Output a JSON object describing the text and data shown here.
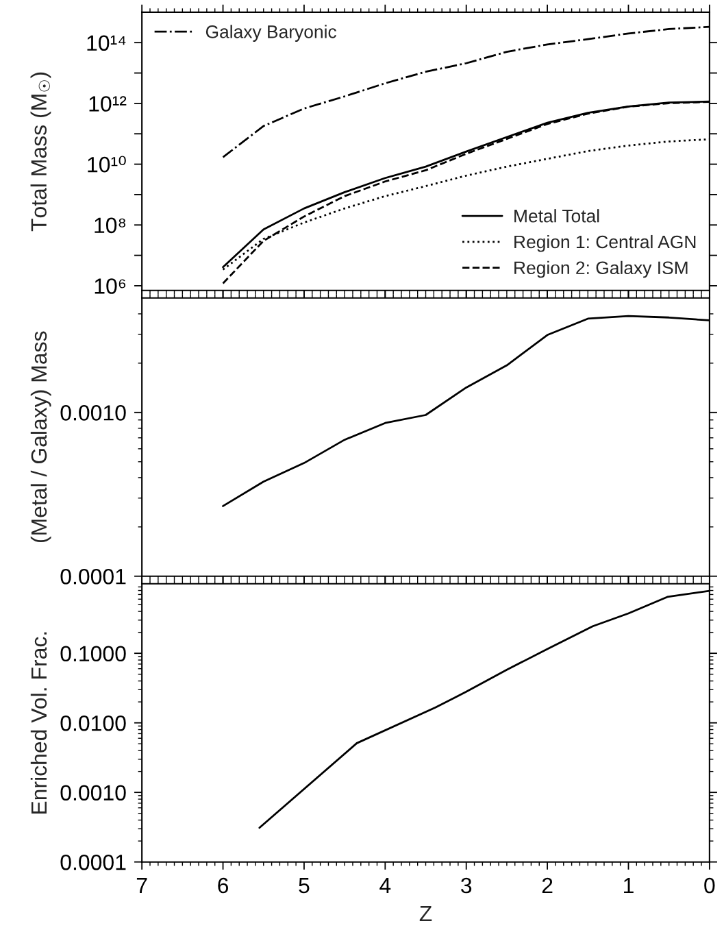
{
  "chart_data": [
    {
      "type": "line",
      "ylabel": "Total Mass (M$_{☉}$)",
      "log": "y",
      "xlim": [
        7,
        0
      ],
      "ylim": [
        700000.0,
        1000000000000000.0
      ],
      "tick_labels": "y",
      "legend": "bottom right",
      "xticks": [
        7,
        {
          "value": 6.9,
          "label": null
        },
        {
          "value": 6.8,
          "label": null
        },
        {
          "value": 6.7,
          "label": null
        },
        {
          "value": 6.6,
          "label": null
        },
        {
          "value": 6.5,
          "label": null
        },
        {
          "value": 6.4,
          "label": null
        },
        {
          "value": 6.3,
          "label": null
        },
        {
          "value": 6.2,
          "label": null
        },
        {
          "value": 6.1,
          "label": null
        },
        6,
        {
          "value": 5.9,
          "label": null
        },
        {
          "value": 5.8,
          "label": null
        },
        {
          "value": 5.7,
          "label": null
        },
        {
          "value": 5.6,
          "label": null
        },
        {
          "value": 5.5,
          "label": null
        },
        {
          "value": 5.4,
          "label": null
        },
        {
          "value": 5.3,
          "label": null
        },
        {
          "value": 5.2,
          "label": null
        },
        {
          "value": 5.1,
          "label": null
        },
        5,
        {
          "value": 4.9,
          "label": null
        },
        {
          "value": 4.8,
          "label": null
        },
        {
          "value": 4.7,
          "label": null
        },
        {
          "value": 4.6,
          "label": null
        },
        {
          "value": 4.5,
          "label": null
        },
        {
          "value": 4.4,
          "label": null
        },
        {
          "value": 4.3,
          "label": null
        },
        {
          "value": 4.2,
          "label": null
        },
        {
          "value": 4.1,
          "label": null
        },
        4,
        {
          "value": 3.9,
          "label": null
        },
        {
          "value": 3.8,
          "label": null
        },
        {
          "value": 3.7,
          "label": null
        },
        {
          "value": 3.6,
          "label": null
        },
        {
          "value": 3.5,
          "label": null
        },
        {
          "value": 3.4,
          "label": null
        },
        {
          "value": 3.3,
          "label": null
        },
        {
          "value": 3.2,
          "label": null
        },
        {
          "value": 3.1,
          "label": null
        },
        3,
        {
          "value": 2.9,
          "label": null
        },
        {
          "value": 2.8,
          "label": null
        },
        {
          "value": 2.7,
          "label": null
        },
        {
          "value": 2.6,
          "label": null
        },
        {
          "value": 2.5,
          "label": null
        },
        {
          "value": 2.4,
          "label": null
        },
        {
          "value": 2.3,
          "label": null
        },
        {
          "value": 2.2,
          "label": null
        },
        {
          "value": 2.1,
          "label": null
        },
        2,
        {
          "value": 1.9,
          "label": null
        },
        {
          "value": 1.8,
          "label": null
        },
        {
          "value": 1.7,
          "label": null
        },
        {
          "value": 1.6,
          "label": null
        },
        {
          "value": 1.5,
          "label": null
        },
        {
          "value": 1.4,
          "label": null
        },
        {
          "value": 1.3,
          "label": null
        },
        {
          "value": 1.2,
          "label": null
        },
        {
          "value": 1.1,
          "label": null
        },
        1,
        {
          "value": 0.9,
          "label": null
        },
        {
          "value": 0.8,
          "label": null
        },
        {
          "value": 0.7,
          "label": null
        },
        {
          "value": 0.6,
          "label": null
        },
        {
          "value": 0.5,
          "label": null
        },
        {
          "value": 0.4,
          "label": null
        },
        {
          "value": 0.3,
          "label": null
        },
        {
          "value": 0.2,
          "label": null
        },
        {
          "value": 0.1,
          "label": null
        },
        0
      ],
      "yticks": [
        {
          "value": 1000000.0,
          "label": "10⁶"
        },
        {
          "value": 10000000.0,
          "label": null
        },
        {
          "value": 100000000.0,
          "label": "10⁸"
        },
        {
          "value": 1000000000.0,
          "label": null
        },
        {
          "value": 10000000000.0,
          "label": "10¹⁰"
        },
        {
          "value": 100000000000.0,
          "label": null
        },
        {
          "value": 1000000000000.0,
          "label": "10¹²"
        },
        {
          "value": 10000000000000.0,
          "label": null
        },
        {
          "value": 100000000000000.0,
          "label": "10¹⁴"
        }
      ],
      "x": [
        6,
        5.5,
        5,
        4.5,
        4,
        3.5,
        3,
        2.5,
        2,
        1.5,
        1,
        0.5,
        0
      ],
      "series": [
        {
          "name": "Galaxy Baryonic",
          "color": "#000000",
          "line_style": "dashdot",
          "values": [
            17000000000.0,
            180000000000.0,
            680000000000.0,
            1700000000000.0,
            4600000000000.0,
            11000000000000.0,
            21000000000000.0,
            50000000000000.0,
            87000000000000.0,
            130000000000000.0,
            200000000000000.0,
            280000000000000.0,
            330000000000000.0
          ]
        },
        {
          "name": "Metal Total",
          "color": "#000000",
          "line_style": "solid",
          "values": [
            4100000.0,
            71000000.0,
            350000000.0,
            1200000000.0,
            3500000000.0,
            8300000000.0,
            26000000000.0,
            78000000000.0,
            230000000000.0,
            490000000000.0,
            790000000000.0,
            1070000000000.0,
            1150000000000.0
          ]
        },
        {
          "name": "Region 1: Central AGN",
          "color": "#000000",
          "line_style": "dotted",
          "values": [
            3400000.0,
            35000000.0,
            120000000.0,
            350000000.0,
            890000000.0,
            1900000000.0,
            4200000000.0,
            8300000000.0,
            15000000000.0,
            27000000000.0,
            41000000000.0,
            56000000000.0,
            66000000000.0
          ]
        },
        {
          "name": "Region 2: Galaxy ISM",
          "color": "#000000",
          "line_style": "dashed",
          "values": [
            1200000.0,
            30000000.0,
            190000000.0,
            890000000.0,
            2700000000.0,
            6300000000.0,
            22000000000.0,
            68000000000.0,
            210000000000.0,
            460000000000.0,
            780000000000.0,
            1020000000000.0,
            1120000000000.0
          ]
        }
      ]
    },
    {
      "type": "line",
      "ylabel": "(Metal / Galaxy) Mass",
      "log": "y",
      "xlim": [
        7,
        0
      ],
      "ylim": [
        0.0001,
        0.005
      ],
      "tick_labels": "y",
      "xticks": [
        7,
        {
          "value": 6.9,
          "label": null
        },
        {
          "value": 6.8,
          "label": null
        },
        {
          "value": 6.7,
          "label": null
        },
        {
          "value": 6.6,
          "label": null
        },
        {
          "value": 6.5,
          "label": null
        },
        {
          "value": 6.4,
          "label": null
        },
        {
          "value": 6.3,
          "label": null
        },
        {
          "value": 6.2,
          "label": null
        },
        {
          "value": 6.1,
          "label": null
        },
        6,
        {
          "value": 5.9,
          "label": null
        },
        {
          "value": 5.8,
          "label": null
        },
        {
          "value": 5.7,
          "label": null
        },
        {
          "value": 5.6,
          "label": null
        },
        {
          "value": 5.5,
          "label": null
        },
        {
          "value": 5.4,
          "label": null
        },
        {
          "value": 5.3,
          "label": null
        },
        {
          "value": 5.2,
          "label": null
        },
        {
          "value": 5.1,
          "label": null
        },
        5,
        {
          "value": 4.9,
          "label": null
        },
        {
          "value": 4.8,
          "label": null
        },
        {
          "value": 4.7,
          "label": null
        },
        {
          "value": 4.6,
          "label": null
        },
        {
          "value": 4.5,
          "label": null
        },
        {
          "value": 4.4,
          "label": null
        },
        {
          "value": 4.3,
          "label": null
        },
        {
          "value": 4.2,
          "label": null
        },
        {
          "value": 4.1,
          "label": null
        },
        4,
        {
          "value": 3.9,
          "label": null
        },
        {
          "value": 3.8,
          "label": null
        },
        {
          "value": 3.7,
          "label": null
        },
        {
          "value": 3.6,
          "label": null
        },
        {
          "value": 3.5,
          "label": null
        },
        {
          "value": 3.4,
          "label": null
        },
        {
          "value": 3.3,
          "label": null
        },
        {
          "value": 3.2,
          "label": null
        },
        {
          "value": 3.1,
          "label": null
        },
        3,
        {
          "value": 2.9,
          "label": null
        },
        {
          "value": 2.8,
          "label": null
        },
        {
          "value": 2.7,
          "label": null
        },
        {
          "value": 2.6,
          "label": null
        },
        {
          "value": 2.5,
          "label": null
        },
        {
          "value": 2.4,
          "label": null
        },
        {
          "value": 2.3,
          "label": null
        },
        {
          "value": 2.2,
          "label": null
        },
        {
          "value": 2.1,
          "label": null
        },
        2,
        {
          "value": 1.9,
          "label": null
        },
        {
          "value": 1.8,
          "label": null
        },
        {
          "value": 1.7,
          "label": null
        },
        {
          "value": 1.6,
          "label": null
        },
        {
          "value": 1.5,
          "label": null
        },
        {
          "value": 1.4,
          "label": null
        },
        {
          "value": 1.3,
          "label": null
        },
        {
          "value": 1.2,
          "label": null
        },
        {
          "value": 1.1,
          "label": null
        },
        1,
        {
          "value": 0.9,
          "label": null
        },
        {
          "value": 0.8,
          "label": null
        },
        {
          "value": 0.7,
          "label": null
        },
        {
          "value": 0.6,
          "label": null
        },
        {
          "value": 0.5,
          "label": null
        },
        {
          "value": 0.4,
          "label": null
        },
        {
          "value": 0.3,
          "label": null
        },
        {
          "value": 0.2,
          "label": null
        },
        {
          "value": 0.1,
          "label": null
        },
        0
      ],
      "yticks": [
        {
          "value": 0.0001,
          "label": "0.0001"
        },
        {
          "value": 0.0002,
          "label": null
        },
        {
          "value": 0.0003,
          "label": null
        },
        {
          "value": 0.0004,
          "label": null
        },
        {
          "value": 0.0005,
          "label": null
        },
        {
          "value": 0.0006,
          "label": null
        },
        {
          "value": 0.0007,
          "label": null
        },
        {
          "value": 0.0008,
          "label": null
        },
        {
          "value": 0.0009,
          "label": null
        },
        {
          "value": 0.001,
          "label": "0.0010"
        },
        {
          "value": 0.002,
          "label": null
        },
        {
          "value": 0.003,
          "label": null
        },
        {
          "value": 0.004,
          "label": null
        }
      ],
      "x": [
        6,
        5.5,
        5,
        4.5,
        4,
        3.5,
        3,
        2.5,
        2,
        1.5,
        1,
        0.5,
        0
      ],
      "series": [
        {
          "color": "#000000",
          "line_style": "solid",
          "values": [
            0.000268,
            0.000378,
            0.000491,
            0.000681,
            0.000862,
            0.000965,
            0.00142,
            0.00194,
            0.00297,
            0.00374,
            0.00388,
            0.0038,
            0.00365
          ]
        }
      ]
    },
    {
      "type": "line",
      "xlabel": "Z",
      "ylabel": "Enriched Vol. Frac.",
      "log": "y",
      "xlim": [
        7,
        0
      ],
      "ylim": [
        0.0001,
        1
      ],
      "xticks": [
        7,
        {
          "value": 6.9,
          "label": null
        },
        {
          "value": 6.8,
          "label": null
        },
        {
          "value": 6.7,
          "label": null
        },
        {
          "value": 6.6,
          "label": null
        },
        {
          "value": 6.5,
          "label": null
        },
        {
          "value": 6.4,
          "label": null
        },
        {
          "value": 6.3,
          "label": null
        },
        {
          "value": 6.2,
          "label": null
        },
        {
          "value": 6.1,
          "label": null
        },
        6,
        {
          "value": 5.9,
          "label": null
        },
        {
          "value": 5.8,
          "label": null
        },
        {
          "value": 5.7,
          "label": null
        },
        {
          "value": 5.6,
          "label": null
        },
        {
          "value": 5.5,
          "label": null
        },
        {
          "value": 5.4,
          "label": null
        },
        {
          "value": 5.3,
          "label": null
        },
        {
          "value": 5.2,
          "label": null
        },
        {
          "value": 5.1,
          "label": null
        },
        5,
        {
          "value": 4.9,
          "label": null
        },
        {
          "value": 4.8,
          "label": null
        },
        {
          "value": 4.7,
          "label": null
        },
        {
          "value": 4.6,
          "label": null
        },
        {
          "value": 4.5,
          "label": null
        },
        {
          "value": 4.4,
          "label": null
        },
        {
          "value": 4.3,
          "label": null
        },
        {
          "value": 4.2,
          "label": null
        },
        {
          "value": 4.1,
          "label": null
        },
        4,
        {
          "value": 3.9,
          "label": null
        },
        {
          "value": 3.8,
          "label": null
        },
        {
          "value": 3.7,
          "label": null
        },
        {
          "value": 3.6,
          "label": null
        },
        {
          "value": 3.5,
          "label": null
        },
        {
          "value": 3.4,
          "label": null
        },
        {
          "value": 3.3,
          "label": null
        },
        {
          "value": 3.2,
          "label": null
        },
        {
          "value": 3.1,
          "label": null
        },
        3,
        {
          "value": 2.9,
          "label": null
        },
        {
          "value": 2.8,
          "label": null
        },
        {
          "value": 2.7,
          "label": null
        },
        {
          "value": 2.6,
          "label": null
        },
        {
          "value": 2.5,
          "label": null
        },
        {
          "value": 2.4,
          "label": null
        },
        {
          "value": 2.3,
          "label": null
        },
        {
          "value": 2.2,
          "label": null
        },
        {
          "value": 2.1,
          "label": null
        },
        2,
        {
          "value": 1.9,
          "label": null
        },
        {
          "value": 1.8,
          "label": null
        },
        {
          "value": 1.7,
          "label": null
        },
        {
          "value": 1.6,
          "label": null
        },
        {
          "value": 1.5,
          "label": null
        },
        {
          "value": 1.4,
          "label": null
        },
        {
          "value": 1.3,
          "label": null
        },
        {
          "value": 1.2,
          "label": null
        },
        {
          "value": 1.1,
          "label": null
        },
        1,
        {
          "value": 0.9,
          "label": null
        },
        {
          "value": 0.8,
          "label": null
        },
        {
          "value": 0.7,
          "label": null
        },
        {
          "value": 0.6,
          "label": null
        },
        {
          "value": 0.5,
          "label": null
        },
        {
          "value": 0.4,
          "label": null
        },
        {
          "value": 0.3,
          "label": null
        },
        {
          "value": 0.2,
          "label": null
        },
        {
          "value": 0.1,
          "label": null
        },
        0
      ],
      "yticks": [
        {
          "value": 0.0001,
          "label": "0.0001"
        },
        {
          "value": 0.0002,
          "label": null
        },
        {
          "value": 0.0003,
          "label": null
        },
        {
          "value": 0.0004,
          "label": null
        },
        {
          "value": 0.0005,
          "label": null
        },
        {
          "value": 0.0006,
          "label": null
        },
        {
          "value": 0.0007,
          "label": null
        },
        {
          "value": 0.0008,
          "label": null
        },
        {
          "value": 0.0009,
          "label": null
        },
        {
          "value": 0.001,
          "label": "0.0010"
        },
        {
          "value": 0.002,
          "label": null
        },
        {
          "value": 0.003,
          "label": null
        },
        {
          "value": 0.004,
          "label": null
        },
        {
          "value": 0.005,
          "label": null
        },
        {
          "value": 0.006,
          "label": null
        },
        {
          "value": 0.007,
          "label": null
        },
        {
          "value": 0.008,
          "label": null
        },
        {
          "value": 0.009,
          "label": null
        },
        {
          "value": 0.01,
          "label": "0.0100"
        },
        {
          "value": 0.02,
          "label": null
        },
        {
          "value": 0.03,
          "label": null
        },
        {
          "value": 0.04,
          "label": null
        },
        {
          "value": 0.05,
          "label": null
        },
        {
          "value": 0.06,
          "label": null
        },
        {
          "value": 0.07,
          "label": null
        },
        {
          "value": 0.08,
          "label": null
        },
        {
          "value": 0.09,
          "label": null
        },
        {
          "value": 0.1,
          "label": "0.1000"
        },
        {
          "value": 0.2,
          "label": null
        },
        {
          "value": 0.3,
          "label": null
        },
        {
          "value": 0.4,
          "label": null
        },
        {
          "value": 0.5,
          "label": null
        },
        {
          "value": 0.6,
          "label": null
        },
        {
          "value": 0.7,
          "label": null
        },
        {
          "value": 0.8,
          "label": null
        },
        {
          "value": 0.9,
          "label": null
        }
      ],
      "series": [
        {
          "color": "#000000",
          "line_style": "solid",
          "x": [
            5.55,
            4.35,
            3.38,
            3,
            2.5,
            2,
            1.44,
            1,
            0.52,
            0
          ],
          "values": [
            0.00031,
            0.0051,
            0.0166,
            0.028,
            0.058,
            0.115,
            0.245,
            0.374,
            0.646,
            0.79
          ]
        }
      ]
    }
  ]
}
